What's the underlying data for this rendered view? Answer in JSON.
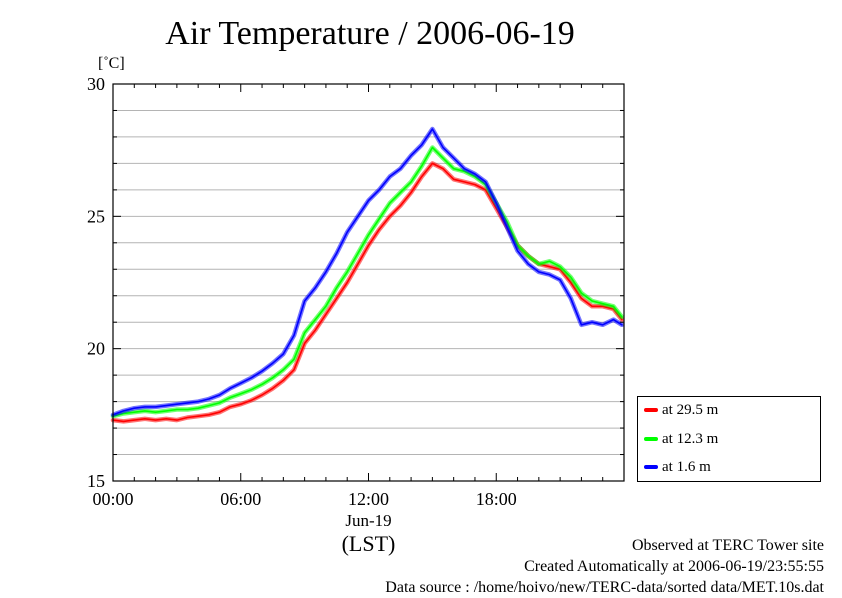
{
  "title": "Air Temperature / 2006-06-19",
  "y_unit": "[˚C]",
  "footer": {
    "line1": "Observed at TERC Tower site",
    "line2": "Created Automatically at 2006-06-19/23:55:55",
    "line3": "Data source : /home/hoivo/new/TERC-data/sorted  data/MET.10s.dat"
  },
  "chart_data": {
    "type": "line",
    "xlabel": "(LST)",
    "x_date_label": "Jun-19",
    "xlim": [
      0,
      24
    ],
    "ylim": [
      15,
      30
    ],
    "x_ticks": [
      {
        "value": 0,
        "label": "00:00"
      },
      {
        "value": 6,
        "label": "06:00"
      },
      {
        "value": 12,
        "label": "12:00"
      },
      {
        "value": 18,
        "label": "18:00"
      }
    ],
    "y_ticks": [
      {
        "value": 15,
        "label": "15"
      },
      {
        "value": 20,
        "label": "20"
      },
      {
        "value": 25,
        "label": "25"
      },
      {
        "value": 30,
        "label": "30"
      }
    ],
    "y_minor_step": 1,
    "grid": true,
    "legend_position": "right, outside plot",
    "series": [
      {
        "name": "at 29.5 m",
        "color": "#ff0000",
        "x": [
          0,
          0.5,
          1,
          1.5,
          2,
          2.5,
          3,
          3.5,
          4,
          4.5,
          5,
          5.5,
          6,
          6.5,
          7,
          7.5,
          8,
          8.5,
          9,
          9.5,
          10,
          10.5,
          11,
          11.5,
          12,
          12.5,
          13,
          13.5,
          14,
          14.5,
          15,
          15.5,
          16,
          16.5,
          17,
          17.5,
          18,
          18.5,
          19,
          19.5,
          20,
          20.5,
          21,
          21.5,
          22,
          22.5,
          23,
          23.5,
          23.9
        ],
        "y": [
          17.3,
          17.25,
          17.3,
          17.35,
          17.3,
          17.35,
          17.3,
          17.4,
          17.45,
          17.5,
          17.6,
          17.8,
          17.9,
          18.05,
          18.25,
          18.5,
          18.8,
          19.2,
          20.2,
          20.7,
          21.3,
          21.9,
          22.5,
          23.2,
          23.9,
          24.5,
          25.0,
          25.4,
          25.9,
          26.5,
          27.0,
          26.8,
          26.4,
          26.3,
          26.2,
          26.0,
          25.3,
          24.6,
          23.9,
          23.5,
          23.2,
          23.1,
          23.0,
          22.5,
          21.9,
          21.6,
          21.6,
          21.5,
          21.1
        ]
      },
      {
        "name": "at 12.3 m",
        "color": "#00ff00",
        "x": [
          0,
          0.5,
          1,
          1.5,
          2,
          2.5,
          3,
          3.5,
          4,
          4.5,
          5,
          5.5,
          6,
          6.5,
          7,
          7.5,
          8,
          8.5,
          9,
          9.5,
          10,
          10.5,
          11,
          11.5,
          12,
          12.5,
          13,
          13.5,
          14,
          14.5,
          15,
          15.5,
          16,
          16.5,
          17,
          17.5,
          18,
          18.5,
          19,
          19.5,
          20,
          20.5,
          21,
          21.5,
          22,
          22.5,
          23,
          23.5,
          23.9
        ],
        "y": [
          17.45,
          17.55,
          17.6,
          17.65,
          17.6,
          17.65,
          17.7,
          17.7,
          17.75,
          17.85,
          17.95,
          18.15,
          18.3,
          18.45,
          18.65,
          18.9,
          19.2,
          19.6,
          20.6,
          21.1,
          21.6,
          22.3,
          22.9,
          23.6,
          24.3,
          24.9,
          25.5,
          25.9,
          26.3,
          26.9,
          27.6,
          27.2,
          26.8,
          26.7,
          26.5,
          26.2,
          25.5,
          24.8,
          23.9,
          23.5,
          23.2,
          23.3,
          23.1,
          22.7,
          22.1,
          21.8,
          21.7,
          21.6,
          21.2
        ]
      },
      {
        "name": "at 1.6 m",
        "color": "#0000ff",
        "x": [
          0,
          0.5,
          1,
          1.5,
          2,
          2.5,
          3,
          3.5,
          4,
          4.5,
          5,
          5.5,
          6,
          6.5,
          7,
          7.5,
          8,
          8.5,
          9,
          9.5,
          10,
          10.5,
          11,
          11.5,
          12,
          12.5,
          13,
          13.5,
          14,
          14.5,
          15,
          15.5,
          16,
          16.5,
          17,
          17.5,
          18,
          18.5,
          19,
          19.5,
          20,
          20.5,
          21,
          21.5,
          22,
          22.5,
          23,
          23.5,
          23.9
        ],
        "y": [
          17.5,
          17.65,
          17.75,
          17.8,
          17.8,
          17.85,
          17.9,
          17.95,
          18.0,
          18.1,
          18.25,
          18.5,
          18.7,
          18.9,
          19.15,
          19.45,
          19.8,
          20.5,
          21.8,
          22.3,
          22.9,
          23.6,
          24.4,
          25.0,
          25.6,
          26.0,
          26.5,
          26.8,
          27.3,
          27.7,
          28.3,
          27.6,
          27.2,
          26.8,
          26.6,
          26.3,
          25.5,
          24.6,
          23.7,
          23.2,
          22.9,
          22.8,
          22.6,
          21.9,
          20.9,
          21.0,
          20.9,
          21.1,
          20.9
        ]
      }
    ]
  }
}
